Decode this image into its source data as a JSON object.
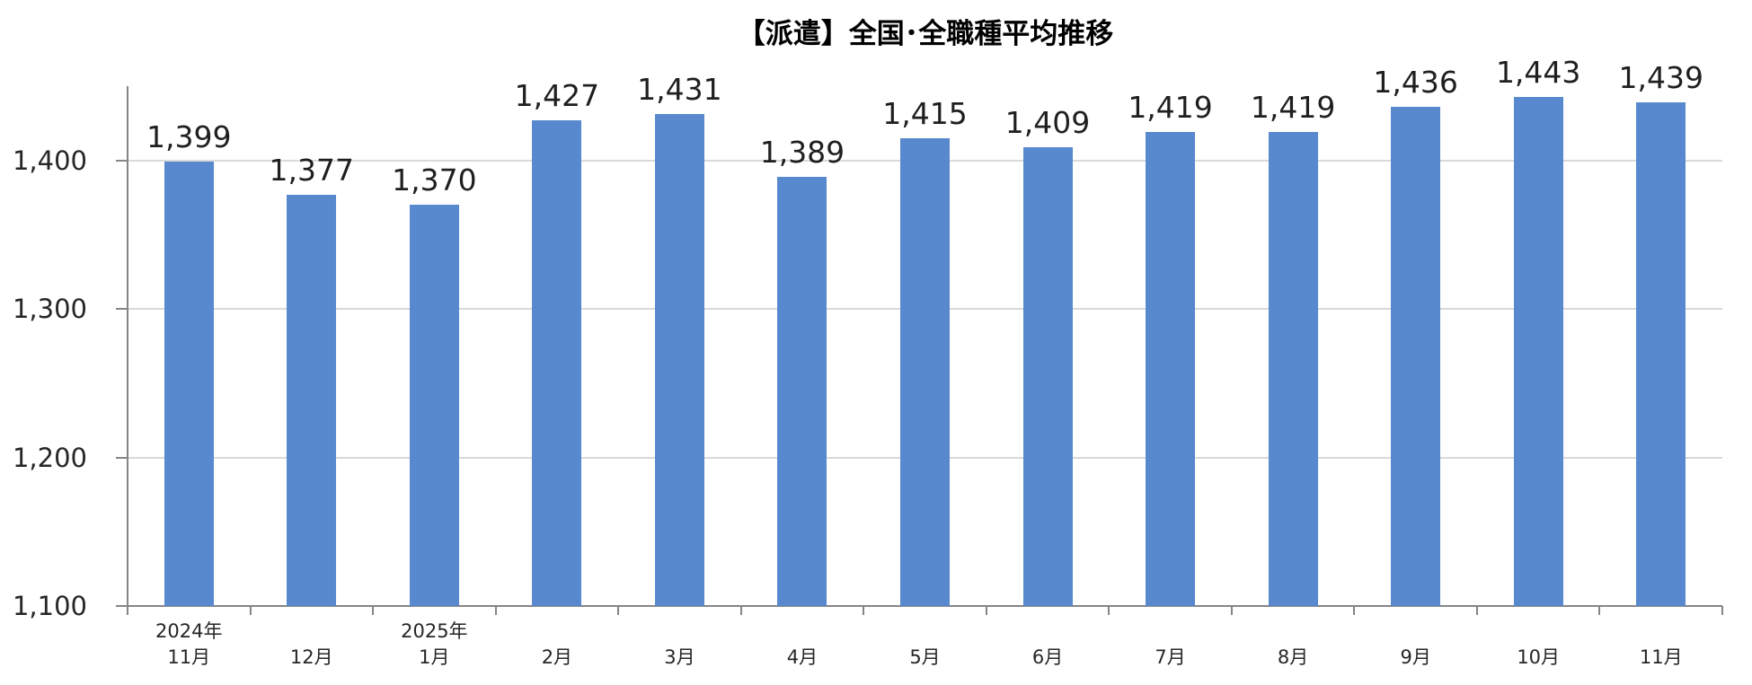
{
  "chart_data": {
    "type": "bar",
    "title": "【派遣】全国･全職種平均推移",
    "categories": [
      "2024年11月",
      "12月",
      "2025年1月",
      "2月",
      "3月",
      "4月",
      "5月",
      "6月",
      "7月",
      "8月",
      "9月",
      "10月",
      "11月"
    ],
    "x_labels": [
      {
        "year": "2024年",
        "month": "11月"
      },
      {
        "year": "",
        "month": "12月"
      },
      {
        "year": "2025年",
        "month": "1月"
      },
      {
        "year": "",
        "month": "2月"
      },
      {
        "year": "",
        "month": "3月"
      },
      {
        "year": "",
        "month": "4月"
      },
      {
        "year": "",
        "month": "5月"
      },
      {
        "year": "",
        "month": "6月"
      },
      {
        "year": "",
        "month": "7月"
      },
      {
        "year": "",
        "month": "8月"
      },
      {
        "year": "",
        "month": "9月"
      },
      {
        "year": "",
        "month": "10月"
      },
      {
        "year": "",
        "month": "11月"
      }
    ],
    "values": [
      1399,
      1377,
      1370,
      1427,
      1431,
      1389,
      1415,
      1409,
      1419,
      1419,
      1436,
      1443,
      1439
    ],
    "value_labels": [
      "1,399",
      "1,377",
      "1,370",
      "1,427",
      "1,431",
      "1,389",
      "1,415",
      "1,409",
      "1,419",
      "1,419",
      "1,436",
      "1,443",
      "1,439"
    ],
    "y_axis": {
      "min": 1100,
      "max": 1450,
      "ticks": [
        {
          "label": "1,100",
          "value": 1100
        },
        {
          "label": "1,200",
          "value": 1200
        },
        {
          "label": "1,300",
          "value": 1300
        },
        {
          "label": "1,400",
          "value": 1400
        }
      ],
      "gridlines": [
        1200,
        1300,
        1400
      ]
    },
    "grid": true,
    "legend": "none",
    "colors": {
      "bar": "#5889CE",
      "gridline": "#D9D9D9",
      "axis": "#858585",
      "value_label": "#1F1F1F",
      "axis_label": "#262626",
      "title": "#000000"
    }
  }
}
